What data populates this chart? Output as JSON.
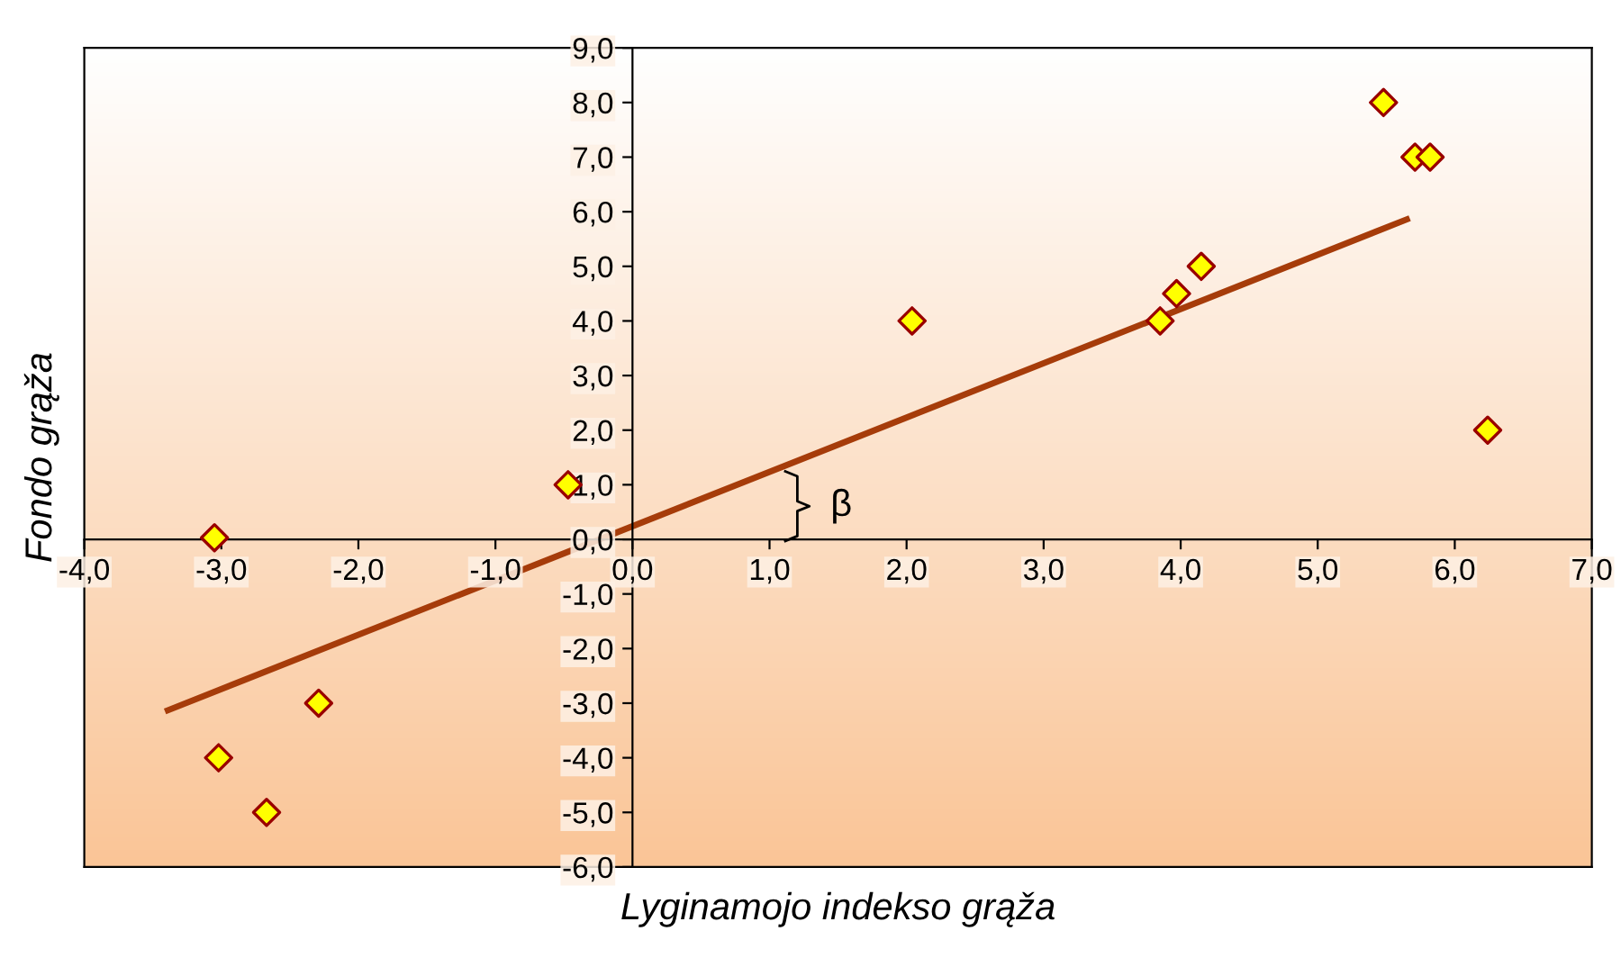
{
  "chart_data": {
    "type": "scatter",
    "xlabel": "Lyginamojo indekso grąža",
    "ylabel": "Fondo grąža",
    "xlim": [
      -4,
      7
    ],
    "ylim": [
      -6,
      9
    ],
    "xticks": [
      {
        "value": -4,
        "label": "-4,0"
      },
      {
        "value": -3,
        "label": "-3,0"
      },
      {
        "value": -2,
        "label": "-2,0"
      },
      {
        "value": -1,
        "label": "-1,0"
      },
      {
        "value": 0,
        "label": "0,0"
      },
      {
        "value": 1,
        "label": "1,0"
      },
      {
        "value": 2,
        "label": "2,0"
      },
      {
        "value": 3,
        "label": "3,0"
      },
      {
        "value": 4,
        "label": "4,0"
      },
      {
        "value": 5,
        "label": "5,0"
      },
      {
        "value": 6,
        "label": "6,0"
      },
      {
        "value": 7,
        "label": "7,0"
      }
    ],
    "yticks": [
      {
        "value": -6,
        "label": "-6,0"
      },
      {
        "value": -5,
        "label": "-5,0"
      },
      {
        "value": -4,
        "label": "-4,0"
      },
      {
        "value": -3,
        "label": "-3,0"
      },
      {
        "value": -2,
        "label": "-2,0"
      },
      {
        "value": -1,
        "label": "-1,0"
      },
      {
        "value": 0,
        "label": "0,0"
      },
      {
        "value": 1,
        "label": "1,0"
      },
      {
        "value": 2,
        "label": "2,0"
      },
      {
        "value": 3,
        "label": "3,0"
      },
      {
        "value": 4,
        "label": "4,0"
      },
      {
        "value": 5,
        "label": "5,0"
      },
      {
        "value": 6,
        "label": "6,0"
      },
      {
        "value": 7,
        "label": "7,0"
      },
      {
        "value": 8,
        "label": "8,0"
      },
      {
        "value": 9,
        "label": "9,0"
      }
    ],
    "grid": false,
    "legend": false,
    "series": [
      {
        "color": "#ffff00",
        "marker": "diamond",
        "x": [
          -3.05,
          -3.02,
          -2.67,
          -2.29,
          -0.47,
          2.04,
          3.85,
          3.97,
          4.15,
          5.48,
          5.71,
          5.82,
          6.24
        ],
        "values": [
          0.03,
          -4,
          -5,
          -3,
          1,
          4,
          4,
          4.5,
          5,
          8,
          7,
          7,
          2
        ]
      },
      {
        "type": "line",
        "color": "#a63c0a",
        "marker": "none",
        "line_style": "solid",
        "x": [
          -3.39,
          5.65
        ],
        "values": [
          -3.13,
          5.86
        ]
      }
    ],
    "annotations": [
      "β"
    ]
  }
}
